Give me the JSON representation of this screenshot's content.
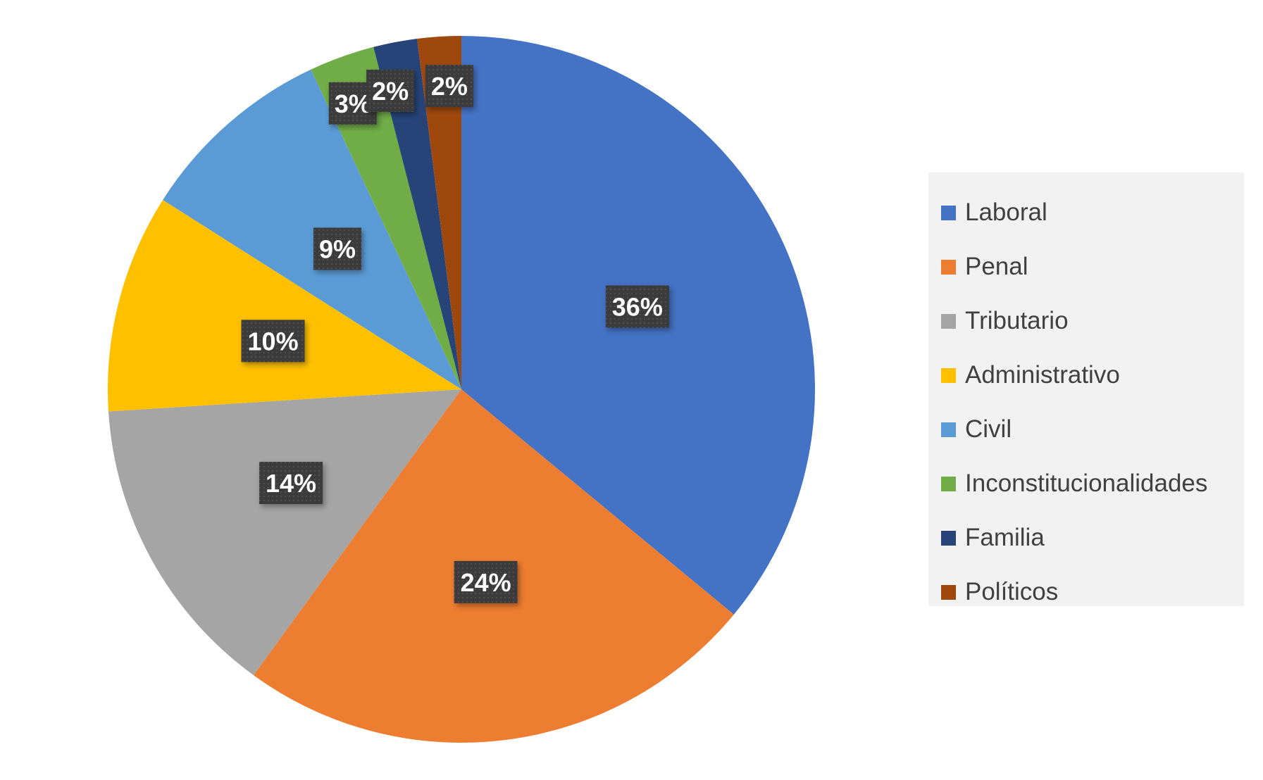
{
  "chart_data": {
    "type": "pie",
    "title": "",
    "categories": [
      "Laboral",
      "Penal",
      "Tributario",
      "Administrativo",
      "Civil",
      "Inconstitucionalidades",
      "Familia",
      "Políticos"
    ],
    "values": [
      36,
      24,
      14,
      10,
      9,
      3,
      2,
      2
    ],
    "data_labels": [
      "36%",
      "24%",
      "14%",
      "10%",
      "9%",
      "3%",
      "2%",
      "2%"
    ],
    "colors": [
      "#4472c4",
      "#ed7d31",
      "#a5a5a5",
      "#ffc000",
      "#5b9bd5",
      "#70ad47",
      "#264478",
      "#9e480e"
    ],
    "start_angle_deg": 0,
    "direction": "clockwise",
    "legend_position": "right"
  },
  "legend": {
    "items": [
      {
        "label": "Laboral"
      },
      {
        "label": "Penal"
      },
      {
        "label": "Tributario"
      },
      {
        "label": "Administrativo"
      },
      {
        "label": "Civil"
      },
      {
        "label": "Inconstitucionalidades"
      },
      {
        "label": "Familia"
      },
      {
        "label": "Políticos"
      }
    ]
  }
}
